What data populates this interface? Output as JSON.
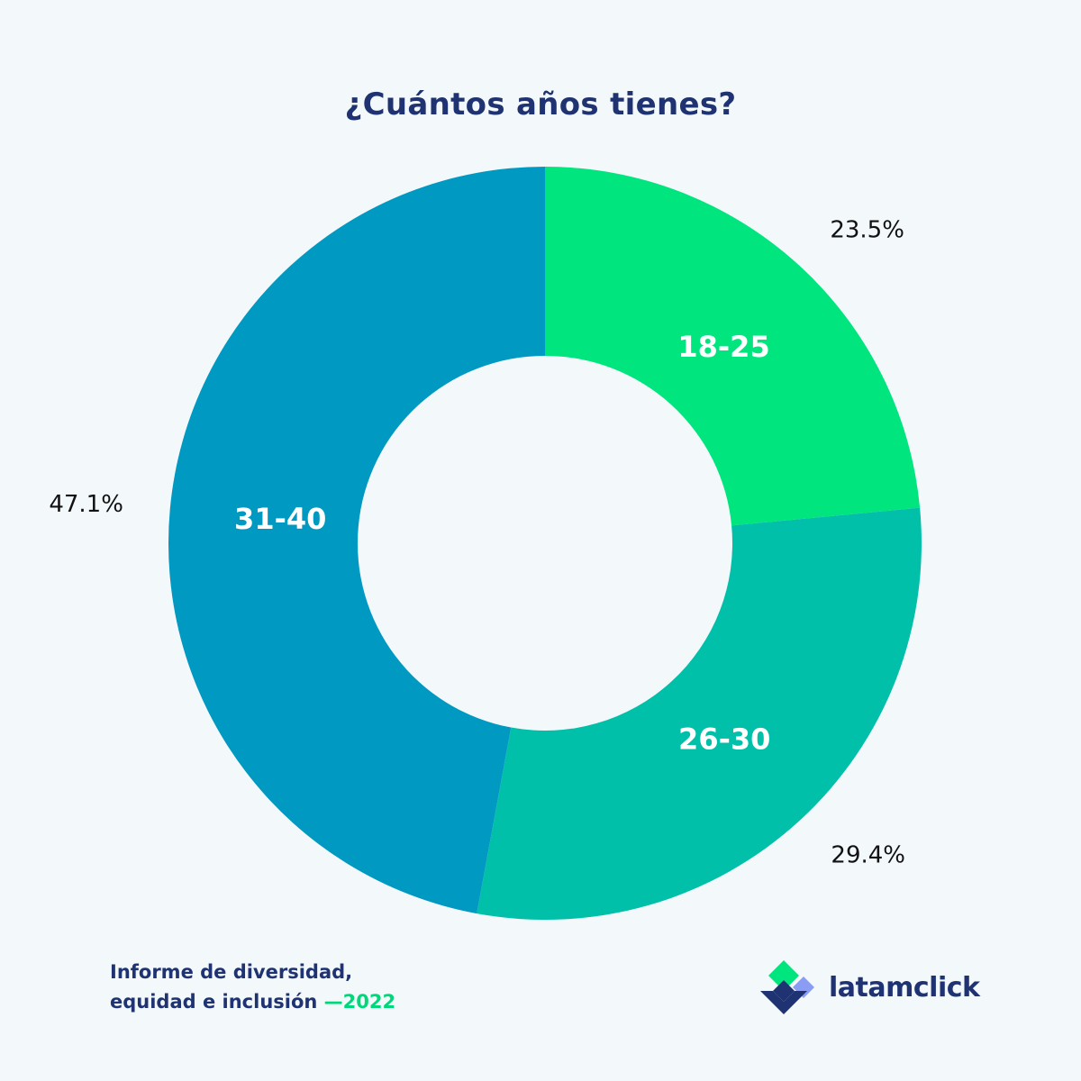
{
  "chart_data": {
    "type": "pie",
    "donut": true,
    "title": "¿Cuántos años tienes?",
    "categories": [
      "18-25",
      "26-30",
      "31-40"
    ],
    "values": [
      23.5,
      29.4,
      47.1
    ],
    "value_labels": [
      "23.5%",
      "29.4%",
      "47.1%"
    ],
    "colors": [
      "#00e57e",
      "#00c0aa",
      "#0099c1"
    ],
    "start_angle_deg": 0,
    "direction": "clockwise"
  },
  "footer": {
    "line1": "Informe de diversidad,",
    "line2": "equidad e inclusión ",
    "year": "—2022"
  },
  "brand": {
    "name": "latamclick",
    "colors": [
      "#1f3373",
      "#00e57e",
      "#8b9cf4"
    ]
  }
}
